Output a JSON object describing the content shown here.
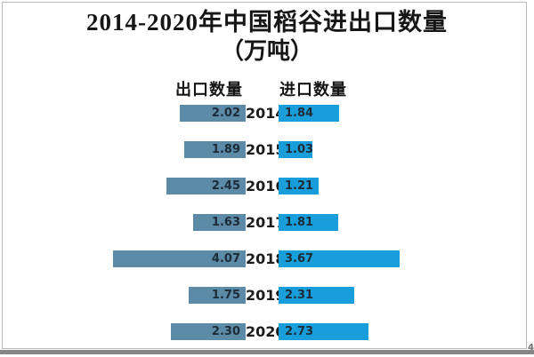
{
  "title": {
    "full": "2014-2020年中国稻谷进出口数量（万吨）",
    "line1": "2014-2020年中国稻谷进出口数量",
    "line2": "（万吨）"
  },
  "legend": {
    "export_label": "出口数量",
    "import_label": "进口数量"
  },
  "colors": {
    "export_bar": "#5b8ba6",
    "import_bar": "#189fdb",
    "title_text": "#161616",
    "value_text": "#1d2b36",
    "frame_border": "#b9b9b9",
    "bottom_band": "#868686"
  },
  "corner_mark": "4",
  "chart_data": {
    "type": "bar",
    "variant": "butterfly",
    "title": "2014-2020年中国稻谷进出口数量（万吨）",
    "unit": "万吨",
    "categories": [
      "2014",
      "2015",
      "2016",
      "2017",
      "2018",
      "2019",
      "2020"
    ],
    "series": [
      {
        "name": "出口数量",
        "side": "left",
        "color": "#5b8ba6",
        "values": [
          2.02,
          1.89,
          2.45,
          1.63,
          4.07,
          1.75,
          2.3
        ],
        "labels": [
          "2.02",
          "1.89",
          "2.45",
          "1.63",
          "4.07",
          "1.75",
          "2.30"
        ]
      },
      {
        "name": "进口数量",
        "side": "right",
        "color": "#189fdb",
        "values": [
          1.84,
          1.03,
          1.21,
          1.81,
          3.67,
          2.31,
          2.73
        ],
        "labels": [
          "1.84",
          "1.03",
          "1.21",
          "1.81",
          "3.67",
          "2.31",
          "2.73"
        ]
      }
    ],
    "value_labels_shown": true,
    "axes_shown": false,
    "grid": false,
    "legend_position": "top",
    "xlim_left": [
      0,
      4.5
    ],
    "xlim_right": [
      0,
      4.5
    ]
  }
}
